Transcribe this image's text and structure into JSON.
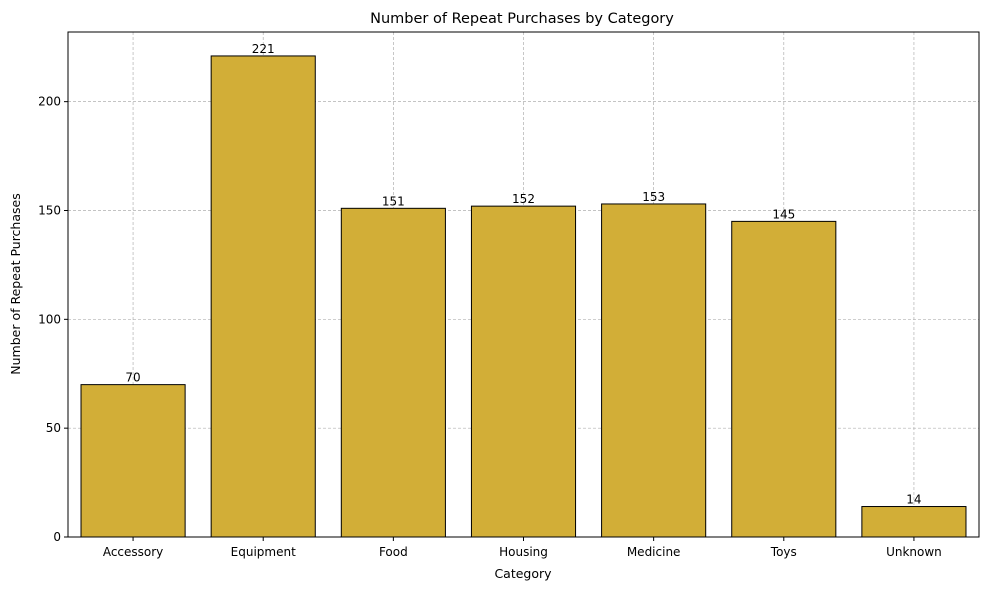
{
  "chart_data": {
    "type": "bar",
    "title": "Number of Repeat Purchases by Category",
    "xlabel": "Category",
    "ylabel": "Number of Repeat Purchases",
    "categories": [
      "Accessory",
      "Equipment",
      "Food",
      "Housing",
      "Medicine",
      "Toys",
      "Unknown"
    ],
    "values": [
      70,
      221,
      151,
      152,
      153,
      145,
      14
    ],
    "data_labels": [
      "70",
      "221",
      "151",
      "152",
      "153",
      "145",
      "14"
    ],
    "ylim": [
      0,
      232
    ],
    "yticks": [
      0,
      50,
      100,
      150,
      200
    ],
    "ytick_labels": [
      "0",
      "50",
      "100",
      "150",
      "200"
    ],
    "grid": true,
    "colors": {
      "bar_fill": "#d2ae37",
      "bar_edge": "#000000",
      "grid": "#b0b0b0"
    }
  }
}
